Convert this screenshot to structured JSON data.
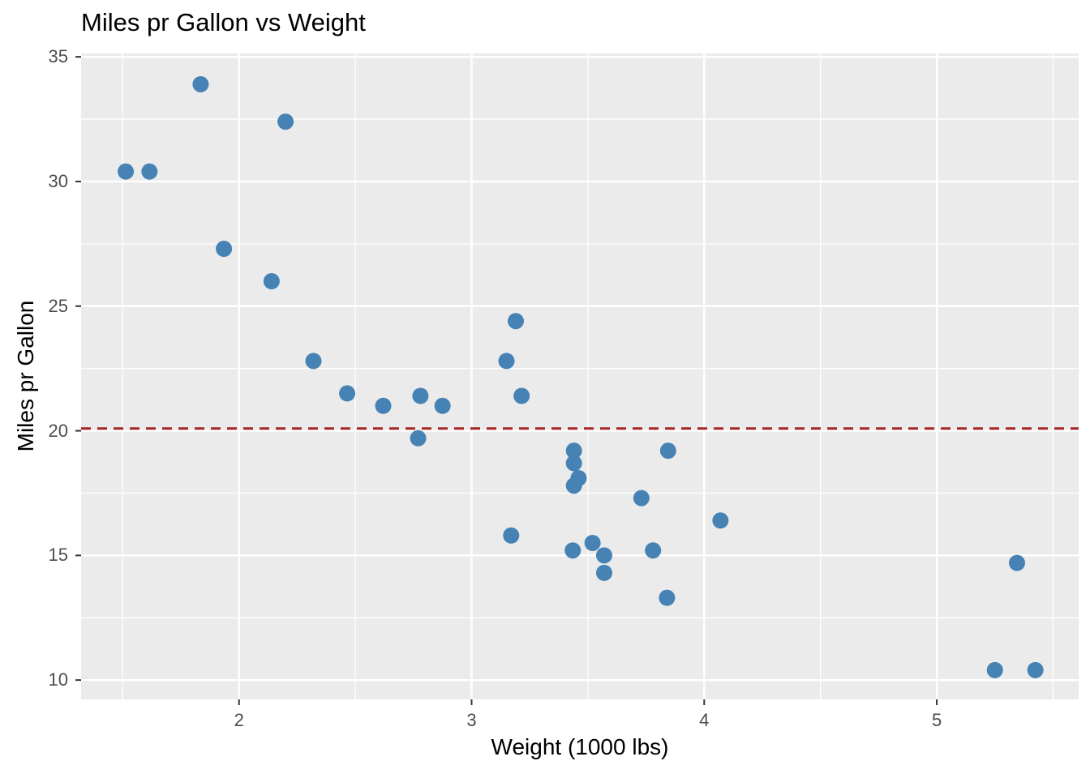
{
  "chart_data": {
    "type": "scatter",
    "title": "Miles pr Gallon vs Weight",
    "xlabel": "Weight (1000 lbs)",
    "ylabel": "Miles pr Gallon",
    "xlim": [
      1.321,
      5.61
    ],
    "ylim": [
      9.225,
      35.135
    ],
    "x_ticks": [
      2,
      3,
      4,
      5
    ],
    "y_ticks": [
      10,
      15,
      20,
      25,
      30,
      35
    ],
    "x_minor_gridlines": [
      1.5,
      2.5,
      3.5,
      4.5,
      5.5
    ],
    "y_minor_gridlines": [
      12.5,
      17.5,
      22.5,
      27.5,
      32.5
    ],
    "grid": "on",
    "legend": "none",
    "points": [
      [
        2.62,
        21.0
      ],
      [
        2.875,
        21.0
      ],
      [
        2.32,
        22.8
      ],
      [
        3.215,
        21.4
      ],
      [
        3.44,
        18.7
      ],
      [
        3.46,
        18.1
      ],
      [
        3.57,
        14.3
      ],
      [
        3.19,
        24.4
      ],
      [
        3.15,
        22.8
      ],
      [
        3.44,
        19.2
      ],
      [
        3.44,
        17.8
      ],
      [
        4.07,
        16.4
      ],
      [
        3.73,
        17.3
      ],
      [
        3.78,
        15.2
      ],
      [
        5.25,
        10.4
      ],
      [
        5.424,
        10.4
      ],
      [
        5.345,
        14.7
      ],
      [
        2.2,
        32.4
      ],
      [
        1.615,
        30.4
      ],
      [
        1.835,
        33.9
      ],
      [
        2.465,
        21.5
      ],
      [
        3.52,
        15.5
      ],
      [
        3.435,
        15.2
      ],
      [
        3.84,
        13.3
      ],
      [
        3.845,
        19.2
      ],
      [
        1.935,
        27.3
      ],
      [
        2.14,
        26.0
      ],
      [
        1.513,
        30.4
      ],
      [
        3.17,
        15.8
      ],
      [
        2.77,
        19.7
      ],
      [
        3.57,
        15.0
      ],
      [
        2.78,
        21.4
      ]
    ],
    "hline": {
      "y": 20.09,
      "linetype": "dashed",
      "color": "#A62525"
    },
    "colors": {
      "point": "#4682B4",
      "panel_background": "#EBEBEB",
      "gridline": "#FFFFFF",
      "tick_label": "#4D4D4D",
      "tick_mark": "#333333",
      "title_text": "#000000"
    }
  }
}
